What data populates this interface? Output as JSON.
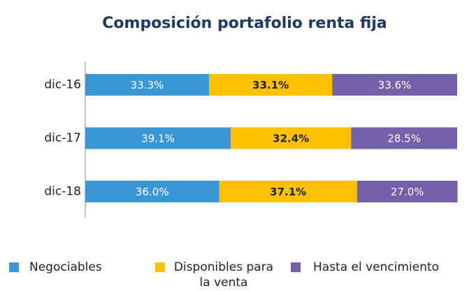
{
  "chart_data": {
    "type": "stacked-bar-horizontal",
    "title": "Composición portafolio renta fija",
    "categories": [
      "dic-16",
      "dic-17",
      "dic-18"
    ],
    "series": [
      {
        "name": "Negociables",
        "color": "#3a96d6",
        "values": [
          33.3,
          39.1,
          36.0
        ],
        "value_labels": [
          "33.3%",
          "39.1%",
          "36.0%"
        ]
      },
      {
        "name": "Disponibles para la venta",
        "color": "#ffc000",
        "values": [
          33.1,
          32.4,
          37.1
        ],
        "value_labels": [
          "33.1%",
          "32.4%",
          "37.1%"
        ]
      },
      {
        "name": "Hasta el vencimiento",
        "color": "#7460a8",
        "values": [
          33.6,
          28.5,
          27.0
        ],
        "value_labels": [
          "33.6%",
          "28.5%",
          "27.0%"
        ]
      }
    ],
    "legend": "bottom"
  }
}
